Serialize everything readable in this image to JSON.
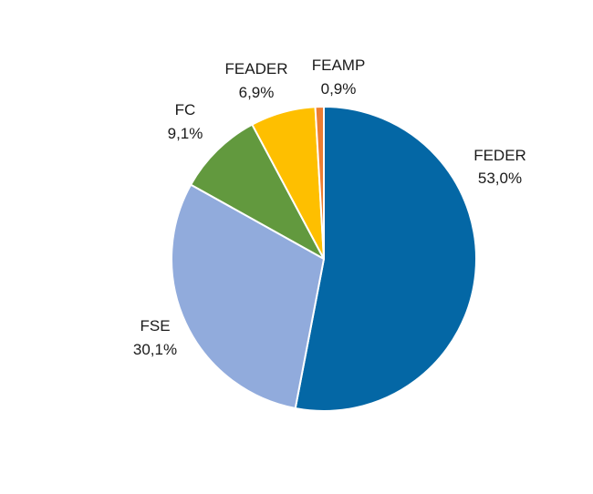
{
  "chart_data": {
    "type": "pie",
    "start_angle_deg": 0,
    "direction": "clockwise",
    "slices": [
      {
        "name": "FEDER",
        "value": 53.0,
        "label": "53,0%",
        "color": "#0467A5"
      },
      {
        "name": "FSE",
        "value": 30.1,
        "label": "30,1%",
        "color": "#91ABDC"
      },
      {
        "name": "FC",
        "value": 9.1,
        "label": "9,1%",
        "color": "#62993E"
      },
      {
        "name": "FEADER",
        "value": 6.9,
        "label": "6,9%",
        "color": "#FEBF00"
      },
      {
        "name": "FEAMP",
        "value": 0.9,
        "label": "0,9%",
        "color": "#ED7D31"
      }
    ],
    "legend": "none"
  }
}
